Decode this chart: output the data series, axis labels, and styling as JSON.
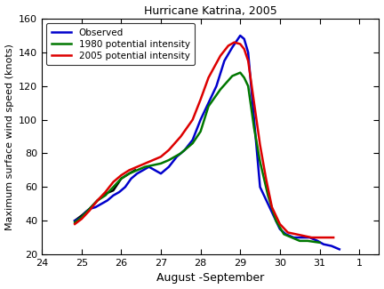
{
  "title": "Hurricane Katrina, 2005",
  "xlabel": "August -September",
  "ylabel": "Maximum surface wind speed (knots)",
  "ylim": [
    20,
    160
  ],
  "yticks": [
    20,
    40,
    60,
    80,
    100,
    120,
    140,
    160
  ],
  "observed_x": [
    24.83,
    25.0,
    25.1,
    25.2,
    25.35,
    25.5,
    25.65,
    25.8,
    25.95,
    26.1,
    26.25,
    26.4,
    26.55,
    26.7,
    26.85,
    27.0,
    27.2,
    27.4,
    27.6,
    27.8,
    28.0,
    28.1,
    28.2,
    28.4,
    28.6,
    28.8,
    29.0,
    29.1,
    29.2,
    29.35,
    29.5,
    29.7,
    29.9,
    30.0,
    30.15,
    30.35,
    30.55,
    30.75,
    30.95,
    31.1,
    31.3,
    31.5
  ],
  "observed_y": [
    40,
    42,
    45,
    47,
    48,
    50,
    52,
    55,
    57,
    60,
    65,
    68,
    70,
    72,
    70,
    68,
    72,
    78,
    82,
    88,
    100,
    105,
    110,
    120,
    135,
    143,
    150,
    148,
    140,
    100,
    60,
    50,
    40,
    35,
    32,
    30,
    30,
    30,
    28,
    26,
    25,
    23
  ],
  "pi1980_x": [
    24.83,
    25.0,
    25.2,
    25.4,
    25.6,
    25.8,
    26.0,
    26.2,
    26.4,
    26.6,
    26.8,
    27.0,
    27.2,
    27.5,
    27.8,
    28.0,
    28.2,
    28.5,
    28.8,
    29.0,
    29.1,
    29.2,
    29.35,
    29.5,
    29.7,
    29.9,
    30.1,
    30.3,
    30.5,
    30.7,
    31.0
  ],
  "pi1980_y": [
    39,
    42,
    47,
    52,
    55,
    60,
    65,
    68,
    70,
    72,
    73,
    74,
    76,
    80,
    86,
    93,
    108,
    118,
    126,
    128,
    125,
    120,
    95,
    75,
    55,
    40,
    32,
    30,
    28,
    28,
    27
  ],
  "pi2005_x": [
    24.83,
    25.0,
    25.2,
    25.4,
    25.6,
    25.8,
    26.0,
    26.2,
    26.4,
    26.6,
    26.8,
    27.0,
    27.2,
    27.5,
    27.8,
    28.0,
    28.2,
    28.5,
    28.7,
    28.85,
    29.0,
    29.1,
    29.2,
    29.35,
    29.5,
    29.65,
    29.8,
    30.0,
    30.2,
    30.4,
    30.6,
    30.8,
    31.0,
    31.2,
    31.35
  ],
  "pi2005_y": [
    38,
    41,
    46,
    52,
    57,
    63,
    67,
    70,
    72,
    74,
    76,
    78,
    82,
    90,
    100,
    112,
    125,
    138,
    144,
    146,
    145,
    142,
    135,
    110,
    85,
    65,
    48,
    38,
    33,
    32,
    31,
    30,
    30,
    30,
    30
  ],
  "black_x": [
    24.83,
    25.0,
    25.2,
    25.4,
    25.6,
    25.8,
    26.0,
    26.2,
    26.35
  ],
  "black_y": [
    40,
    43,
    47,
    52,
    56,
    58,
    65,
    68,
    70
  ],
  "color_observed": "#0000cc",
  "color_pi1980": "#007700",
  "color_pi2005": "#dd0000",
  "color_black": "#000000",
  "linewidth": 1.8,
  "bg_color": "#ffffff",
  "legend_labels": [
    "Observed",
    "1980 potential intensity",
    "2005 potential intensity"
  ]
}
